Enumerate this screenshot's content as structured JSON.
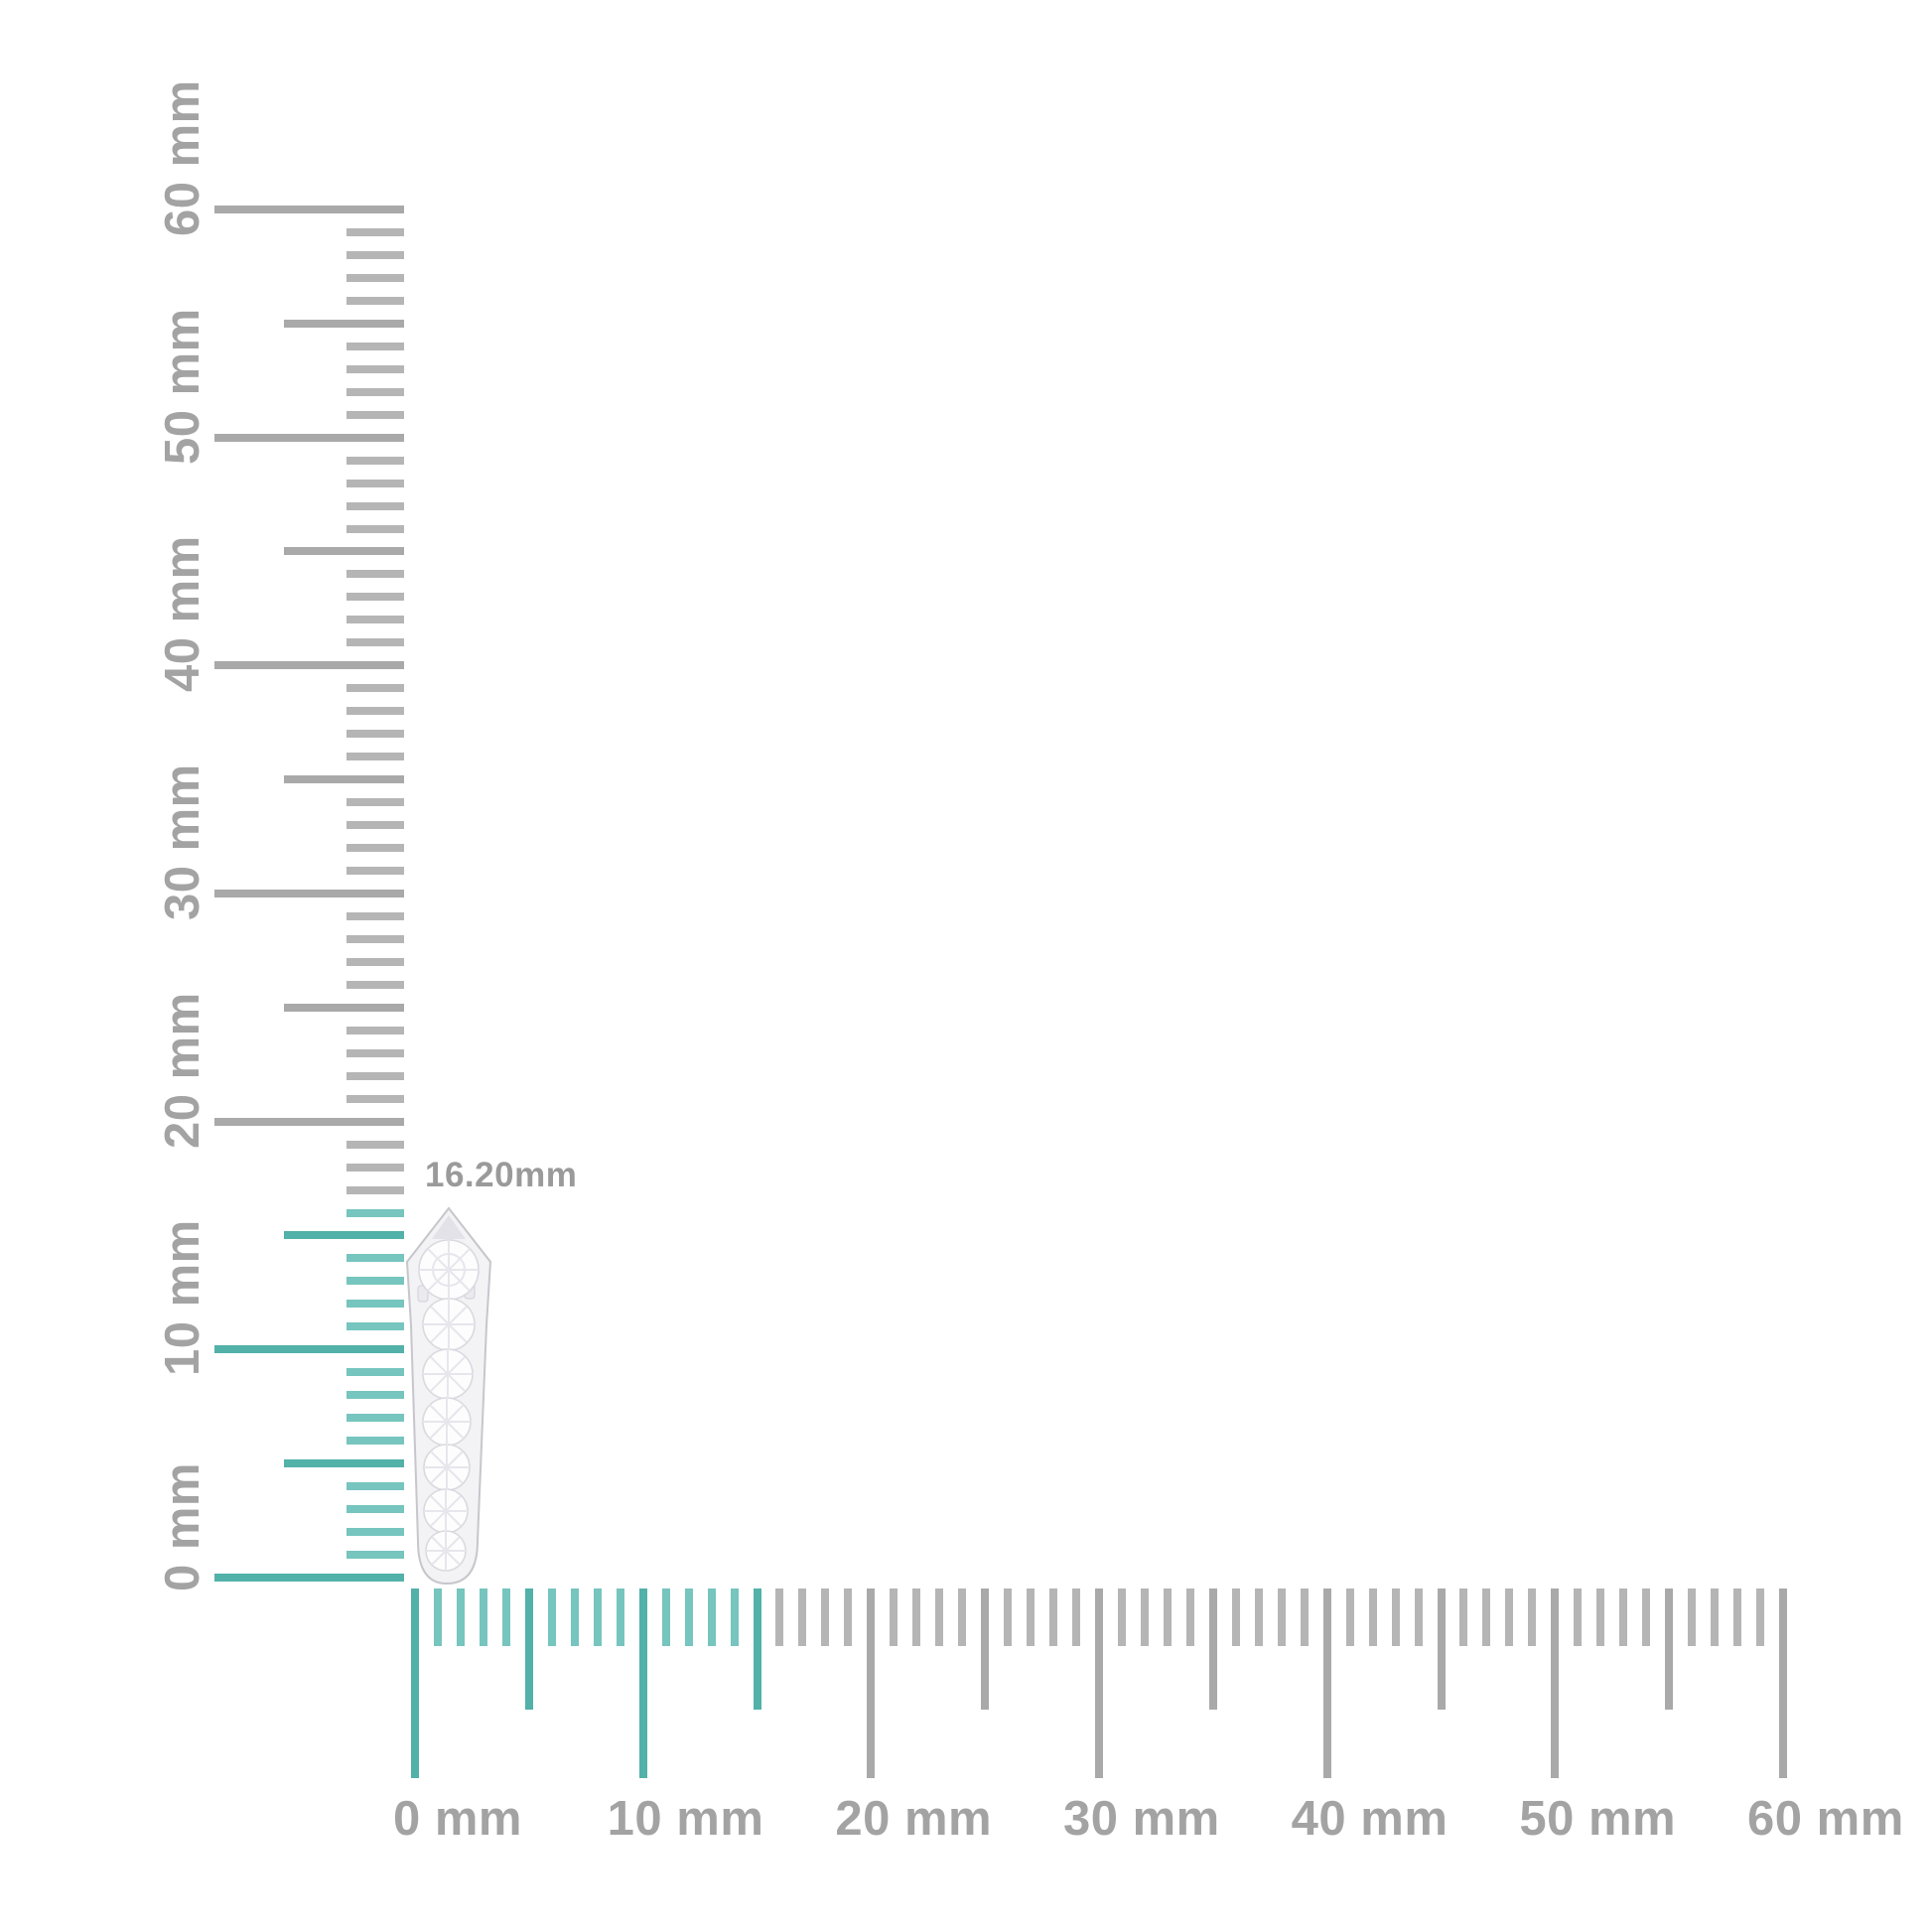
{
  "measurement": {
    "label": "16.20mm"
  },
  "unit": "mm",
  "rulers": {
    "vertical": {
      "orientation": "vertical",
      "range_mm": [
        0,
        60
      ],
      "tick_every_mm": 1,
      "medium_every_mm": 5,
      "major_every_mm": 10,
      "highlight_from_mm": 0,
      "highlight_to_mm": 16,
      "axis_labels": [
        {
          "mm": 0,
          "text": "0 mm"
        },
        {
          "mm": 10,
          "text": "10 mm"
        },
        {
          "mm": 20,
          "text": "20 mm"
        },
        {
          "mm": 30,
          "text": "30 mm"
        },
        {
          "mm": 40,
          "text": "40 mm"
        },
        {
          "mm": 50,
          "text": "50 mm"
        },
        {
          "mm": 60,
          "text": "60 mm"
        }
      ]
    },
    "horizontal": {
      "orientation": "horizontal",
      "range_mm": [
        0,
        60
      ],
      "tick_every_mm": 1,
      "medium_every_mm": 5,
      "major_every_mm": 10,
      "highlight_from_mm": 0,
      "highlight_to_mm": 15,
      "axis_labels": [
        {
          "mm": 0,
          "text": "0 mm"
        },
        {
          "mm": 10,
          "text": "10 mm"
        },
        {
          "mm": 20,
          "text": "20 mm"
        },
        {
          "mm": 30,
          "text": "30 mm"
        },
        {
          "mm": 40,
          "text": "40 mm"
        },
        {
          "mm": 50,
          "text": "50 mm"
        },
        {
          "mm": 60,
          "text": "60 mm"
        }
      ]
    }
  },
  "jewelry": {
    "name": "diamond-pave-bar-drop",
    "description_visible": false
  },
  "colors": {
    "background": "#ffffff",
    "tick_teal_strong": "#52b1a9",
    "tick_teal_soft": "#76c5be",
    "tick_gray_strong": "#a9a9a9",
    "tick_gray_soft": "#b5b5b5",
    "axis_label": "#a3a3a3",
    "measurement_label": "#9a9a9a",
    "metal": "#f3f3f6",
    "metal_edge": "#c6c6cc",
    "metal_facet": "#e2e2e8",
    "stone_fill": "#fdfdfe",
    "stone_edge": "#d9d9df",
    "stone_facet": "#e6e6ec"
  }
}
